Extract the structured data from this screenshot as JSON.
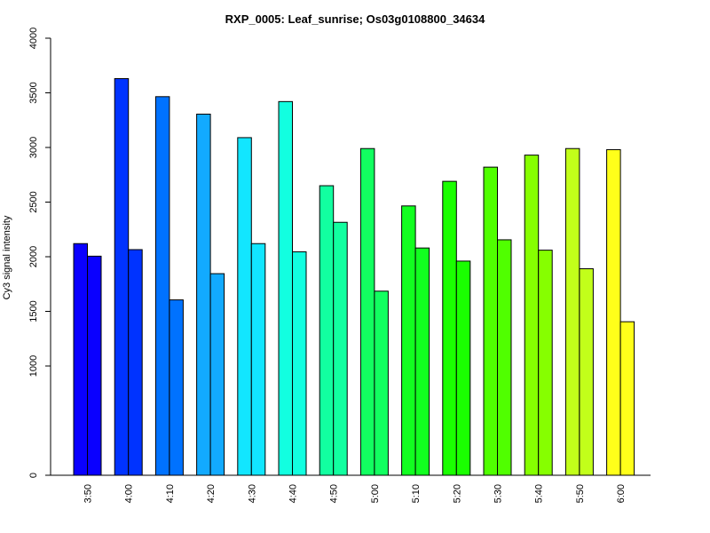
{
  "chart_data": {
    "type": "bar",
    "title": "RXP_0005: Leaf_sunrise; Os03g0108800_34634",
    "xlabel": "",
    "ylabel": "Cy3 signal intensity",
    "categories": [
      "3:50",
      "4:00",
      "4:10",
      "4:20",
      "4:30",
      "4:40",
      "4:50",
      "5:00",
      "5:10",
      "5:20",
      "5:30",
      "5:40",
      "5:50",
      "6:00"
    ],
    "series": [
      {
        "values": [
          2120,
          3630,
          3465,
          3305,
          3090,
          3420,
          2650,
          2990,
          2465,
          2690,
          2820,
          2930,
          2990,
          2980
        ]
      },
      {
        "values": [
          2005,
          2065,
          1605,
          1845,
          2120,
          2045,
          2315,
          1685,
          2080,
          1960,
          2155,
          2060,
          1890,
          1405
        ]
      }
    ],
    "group_colors": [
      "#0a00ff",
      "#0033ff",
      "#0072ff",
      "#12aaff",
      "#12e6ff",
      "#12ffe0",
      "#12ffa0",
      "#12ff60",
      "#12ff20",
      "#1aff00",
      "#50ff00",
      "#86ff00",
      "#c2ff1a",
      "#ffff1a"
    ],
    "yticks": [
      0,
      1000,
      1500,
      2000,
      2500,
      3000,
      3500,
      4000
    ],
    "ylim": [
      0,
      4000
    ],
    "legend": "none",
    "grid": false
  }
}
